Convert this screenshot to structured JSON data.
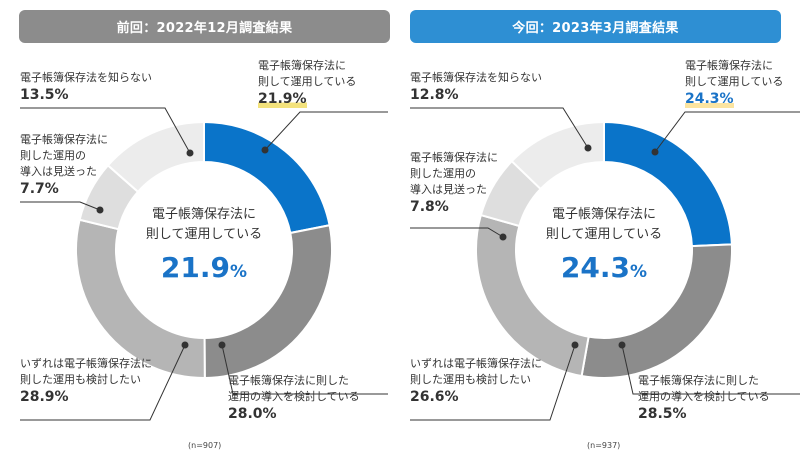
{
  "chart_data": [
    {
      "type": "pie",
      "title": "前回：2022年12月調査結果",
      "center_label_line1": "電子帳簿保存法に",
      "center_label_line2": "則して運用している",
      "center_value": "21.9%",
      "note": "(n=907)",
      "colors": [
        "#0a74c9",
        "#8c8c8c",
        "#b5b5b5",
        "#dedede",
        "#ececec"
      ],
      "slices": [
        {
          "lines": [
            "電子帳簿保存法に",
            "則して運用している"
          ],
          "value": 21.9,
          "value_text": "21.9%"
        },
        {
          "lines": [
            "電子帳簿保存法に則した",
            "運用の導入を検討している"
          ],
          "value": 28.0,
          "value_text": "28.0%"
        },
        {
          "lines": [
            "いずれは電子帳簿保存法に",
            "則した運用も検討したい"
          ],
          "value": 28.9,
          "value_text": "28.9%"
        },
        {
          "lines": [
            "電子帳簿保存法に",
            "則した運用の",
            "導入は見送った"
          ],
          "value": 7.7,
          "value_text": "7.7%"
        },
        {
          "lines": [
            "電子帳簿保存法を知らない"
          ],
          "value": 13.5,
          "value_text": "13.5%"
        }
      ]
    },
    {
      "type": "pie",
      "title": "今回：2023年3月調査結果",
      "center_label_line1": "電子帳簿保存法に",
      "center_label_line2": "則して運用している",
      "center_value": "24.3%",
      "note": "(n=937)",
      "colors": [
        "#0a74c9",
        "#8c8c8c",
        "#b5b5b5",
        "#dedede",
        "#ececec"
      ],
      "slices": [
        {
          "lines": [
            "電子帳簿保存法に",
            "則して運用している"
          ],
          "value": 24.3,
          "value_text": "24.3%"
        },
        {
          "lines": [
            "電子帳簿保存法に則した",
            "運用の導入を検討している"
          ],
          "value": 28.5,
          "value_text": "28.5%"
        },
        {
          "lines": [
            "いずれは電子帳簿保存法に",
            "則した運用も検討したい"
          ],
          "value": 26.6,
          "value_text": "26.6%"
        },
        {
          "lines": [
            "電子帳簿保存法に",
            "則した運用の",
            "導入は見送った"
          ],
          "value": 7.8,
          "value_text": "7.8%"
        },
        {
          "lines": [
            "電子帳簿保存法を知らない"
          ],
          "value": 12.8,
          "value_text": "12.8%"
        }
      ]
    }
  ]
}
